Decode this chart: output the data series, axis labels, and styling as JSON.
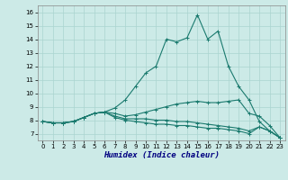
{
  "xlabel": "Humidex (Indice chaleur)",
  "xlim": [
    -0.5,
    23.5
  ],
  "ylim": [
    6.5,
    16.5
  ],
  "yticks": [
    7,
    8,
    9,
    10,
    11,
    12,
    13,
    14,
    15,
    16
  ],
  "xticks": [
    0,
    1,
    2,
    3,
    4,
    5,
    6,
    7,
    8,
    9,
    10,
    11,
    12,
    13,
    14,
    15,
    16,
    17,
    18,
    19,
    20,
    21,
    22,
    23
  ],
  "bg_color": "#cceae7",
  "grid_color": "#aad4d0",
  "line_color": "#1a7a6e",
  "lines": [
    {
      "y": [
        7.9,
        7.8,
        7.8,
        7.9,
        8.2,
        8.5,
        8.6,
        8.9,
        9.5,
        10.5,
        11.5,
        12.0,
        14.0,
        13.8,
        14.1,
        15.8,
        14.0,
        14.6,
        12.0,
        10.5,
        9.5,
        7.9,
        7.2,
        6.7
      ],
      "marker": true
    },
    {
      "y": [
        7.9,
        7.8,
        7.8,
        7.9,
        8.2,
        8.5,
        8.6,
        8.5,
        8.3,
        8.4,
        8.6,
        8.8,
        9.0,
        9.2,
        9.3,
        9.4,
        9.3,
        9.3,
        9.4,
        9.5,
        8.5,
        8.3,
        7.6,
        6.7
      ],
      "marker": true
    },
    {
      "y": [
        7.9,
        7.8,
        7.8,
        7.9,
        8.2,
        8.5,
        8.6,
        8.3,
        8.1,
        8.1,
        8.1,
        8.0,
        8.0,
        7.9,
        7.9,
        7.8,
        7.7,
        7.6,
        7.5,
        7.4,
        7.2,
        7.5,
        7.2,
        6.7
      ],
      "marker": true
    },
    {
      "y": [
        7.9,
        7.8,
        7.8,
        7.9,
        8.2,
        8.5,
        8.6,
        8.2,
        8.0,
        7.9,
        7.8,
        7.7,
        7.7,
        7.6,
        7.6,
        7.5,
        7.4,
        7.4,
        7.3,
        7.2,
        7.0,
        7.5,
        7.2,
        6.7
      ],
      "marker": true
    }
  ]
}
